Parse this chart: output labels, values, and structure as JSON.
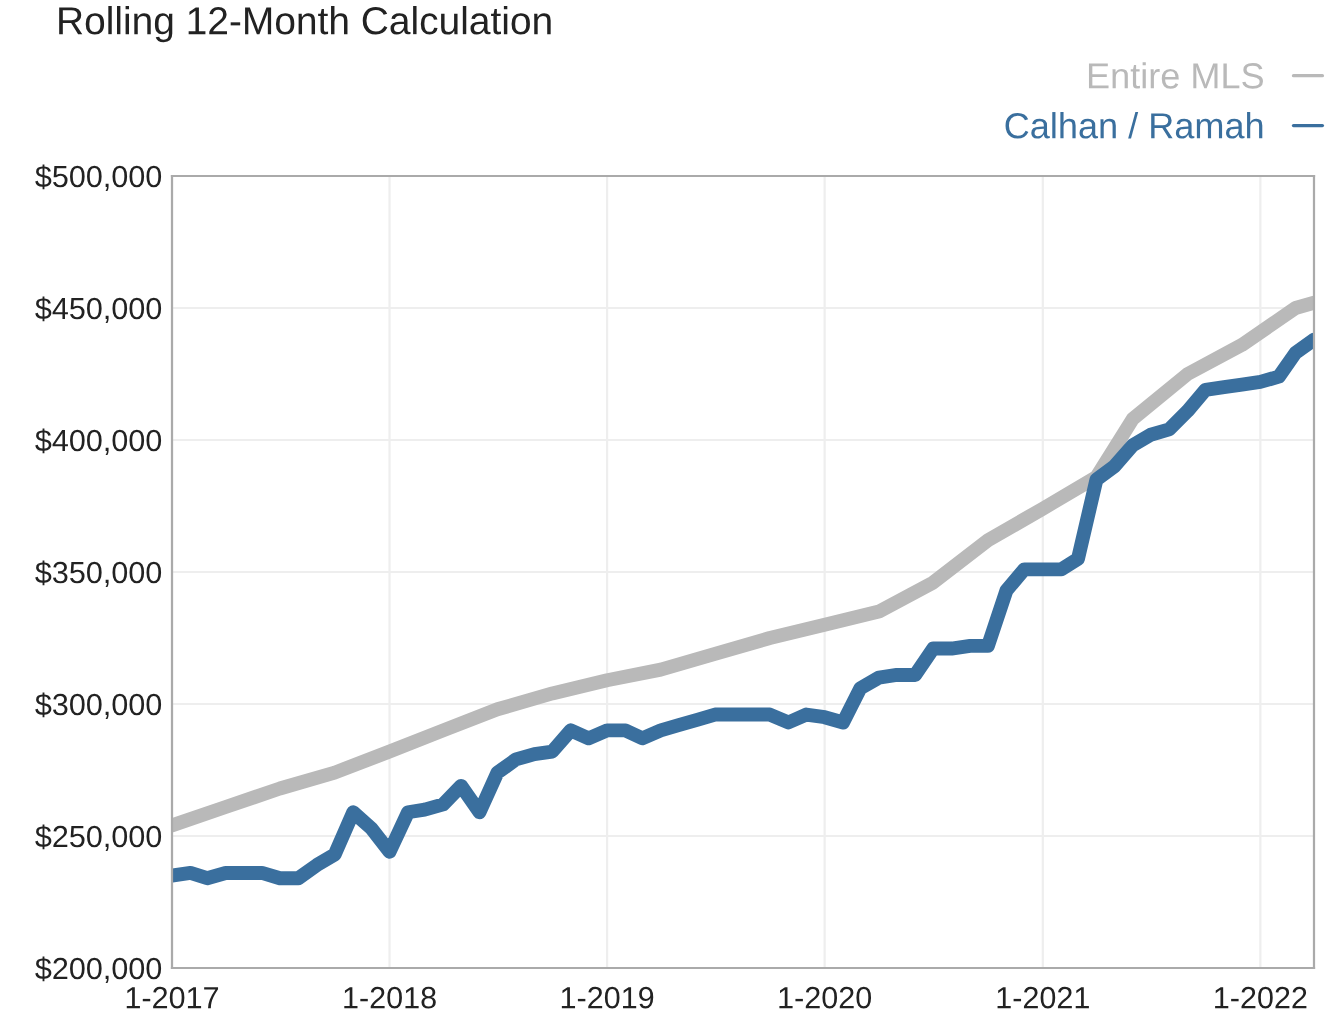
{
  "chart_data": {
    "type": "line",
    "title": "Rolling 12-Month Calculation",
    "series": [
      {
        "name": "Entire MLS",
        "color": "#b9b9b9",
        "x": [
          "2017-01",
          "2017-04",
          "2017-07",
          "2017-10",
          "2018-01",
          "2018-04",
          "2018-07",
          "2018-10",
          "2019-01",
          "2019-04",
          "2019-07",
          "2019-10",
          "2020-01",
          "2020-04",
          "2020-07",
          "2020-10",
          "2021-01",
          "2021-04",
          "2021-06",
          "2021-09",
          "2021-12",
          "2022-03",
          "2022-04"
        ],
        "values": [
          254000,
          261000,
          268000,
          274000,
          282000,
          290000,
          298000,
          304000,
          309000,
          313000,
          319000,
          325000,
          330000,
          335000,
          346000,
          362000,
          374000,
          386000,
          408000,
          425000,
          436000,
          450000,
          452000
        ]
      },
      {
        "name": "Calhan / Ramah",
        "color": "#3a6f9e",
        "x": [
          "2017-01",
          "2017-02",
          "2017-03",
          "2017-04",
          "2017-05",
          "2017-06",
          "2017-07",
          "2017-08",
          "2017-09",
          "2017-10",
          "2017-11",
          "2017-12",
          "2018-01",
          "2018-02",
          "2018-03",
          "2018-04",
          "2018-05",
          "2018-06",
          "2018-07",
          "2018-08",
          "2018-09",
          "2018-10",
          "2018-11",
          "2018-12",
          "2019-01",
          "2019-02",
          "2019-03",
          "2019-04",
          "2019-05",
          "2019-06",
          "2019-07",
          "2019-08",
          "2019-09",
          "2019-10",
          "2019-11",
          "2019-12",
          "2020-01",
          "2020-02",
          "2020-03",
          "2020-04",
          "2020-05",
          "2020-06",
          "2020-07",
          "2020-08",
          "2020-09",
          "2020-10",
          "2020-11",
          "2020-12",
          "2021-01",
          "2021-02",
          "2021-03",
          "2021-04",
          "2021-05",
          "2021-06",
          "2021-07",
          "2021-08",
          "2021-09",
          "2021-10",
          "2021-11",
          "2021-12",
          "2022-01",
          "2022-02",
          "2022-03",
          "2022-04"
        ],
        "values": [
          235000,
          236000,
          234000,
          236000,
          236000,
          236000,
          234000,
          234000,
          239000,
          243000,
          259000,
          253000,
          244000,
          259000,
          260000,
          262000,
          269000,
          259000,
          274000,
          279000,
          281000,
          282000,
          290000,
          287000,
          290000,
          290000,
          287000,
          290000,
          292000,
          294000,
          296000,
          296000,
          296000,
          296000,
          293000,
          296000,
          295000,
          293000,
          306000,
          310000,
          311000,
          311000,
          321000,
          321000,
          322000,
          322000,
          343000,
          351000,
          351000,
          351000,
          355000,
          385000,
          390000,
          398000,
          402000,
          404000,
          411000,
          419000,
          420000,
          421000,
          422000,
          424000,
          433000,
          438000
        ]
      }
    ],
    "xlim": [
      "2017-01",
      "2022-04"
    ],
    "xticks": [
      {
        "value": "2017-01",
        "label": "1-2017"
      },
      {
        "value": "2018-01",
        "label": "1-2018"
      },
      {
        "value": "2019-01",
        "label": "1-2019"
      },
      {
        "value": "2020-01",
        "label": "1-2020"
      },
      {
        "value": "2021-01",
        "label": "1-2021"
      },
      {
        "value": "2022-01",
        "label": "1-2022"
      }
    ],
    "ylim": [
      200000,
      500000
    ],
    "yticks": [
      {
        "value": 200000,
        "label": "$200,000"
      },
      {
        "value": 250000,
        "label": "$250,000"
      },
      {
        "value": 300000,
        "label": "$300,000"
      },
      {
        "value": 350000,
        "label": "$350,000"
      },
      {
        "value": 400000,
        "label": "$400,000"
      },
      {
        "value": 450000,
        "label": "$450,000"
      },
      {
        "value": 500000,
        "label": "$500,000"
      }
    ],
    "grid": true,
    "legend": "top right",
    "line_style": "solid",
    "marker": "none"
  }
}
